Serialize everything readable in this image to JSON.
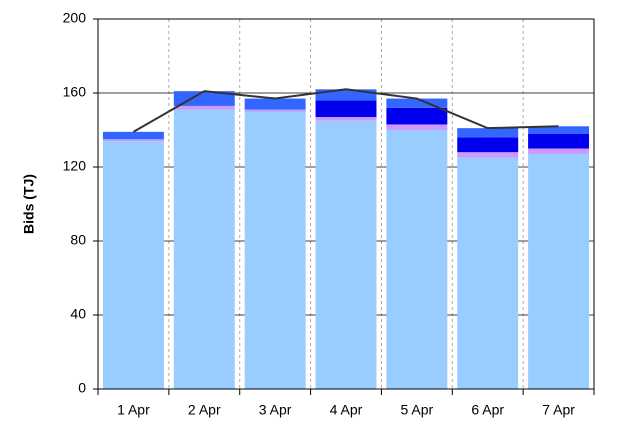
{
  "chart_data": {
    "type": "bar",
    "stacked": true,
    "y_label": "Bids (TJ)",
    "categories": [
      "1 Apr",
      "2 Apr",
      "3 Apr",
      "4 Apr",
      "5 Apr",
      "6 Apr",
      "7 Apr"
    ],
    "series": [
      {
        "color": "#99ccff",
        "values": [
          134,
          151,
          150,
          145,
          140,
          125,
          127
        ]
      },
      {
        "color": "#cc99ff",
        "values": [
          1,
          2,
          1,
          2,
          3,
          3,
          3
        ]
      },
      {
        "color": "#0000ee",
        "values": [
          0,
          0,
          0,
          9,
          9,
          8,
          8
        ]
      },
      {
        "color": "#3366ff",
        "values": [
          4,
          8,
          6,
          6,
          5,
          5,
          4
        ]
      },
      {
        "type": "line",
        "color": "#333333",
        "values": [
          139,
          161,
          157,
          162,
          157,
          141,
          142
        ]
      }
    ],
    "ylim": [
      0,
      200
    ],
    "yticks": [
      0,
      40,
      80,
      120,
      160,
      200
    ],
    "grid": true
  }
}
